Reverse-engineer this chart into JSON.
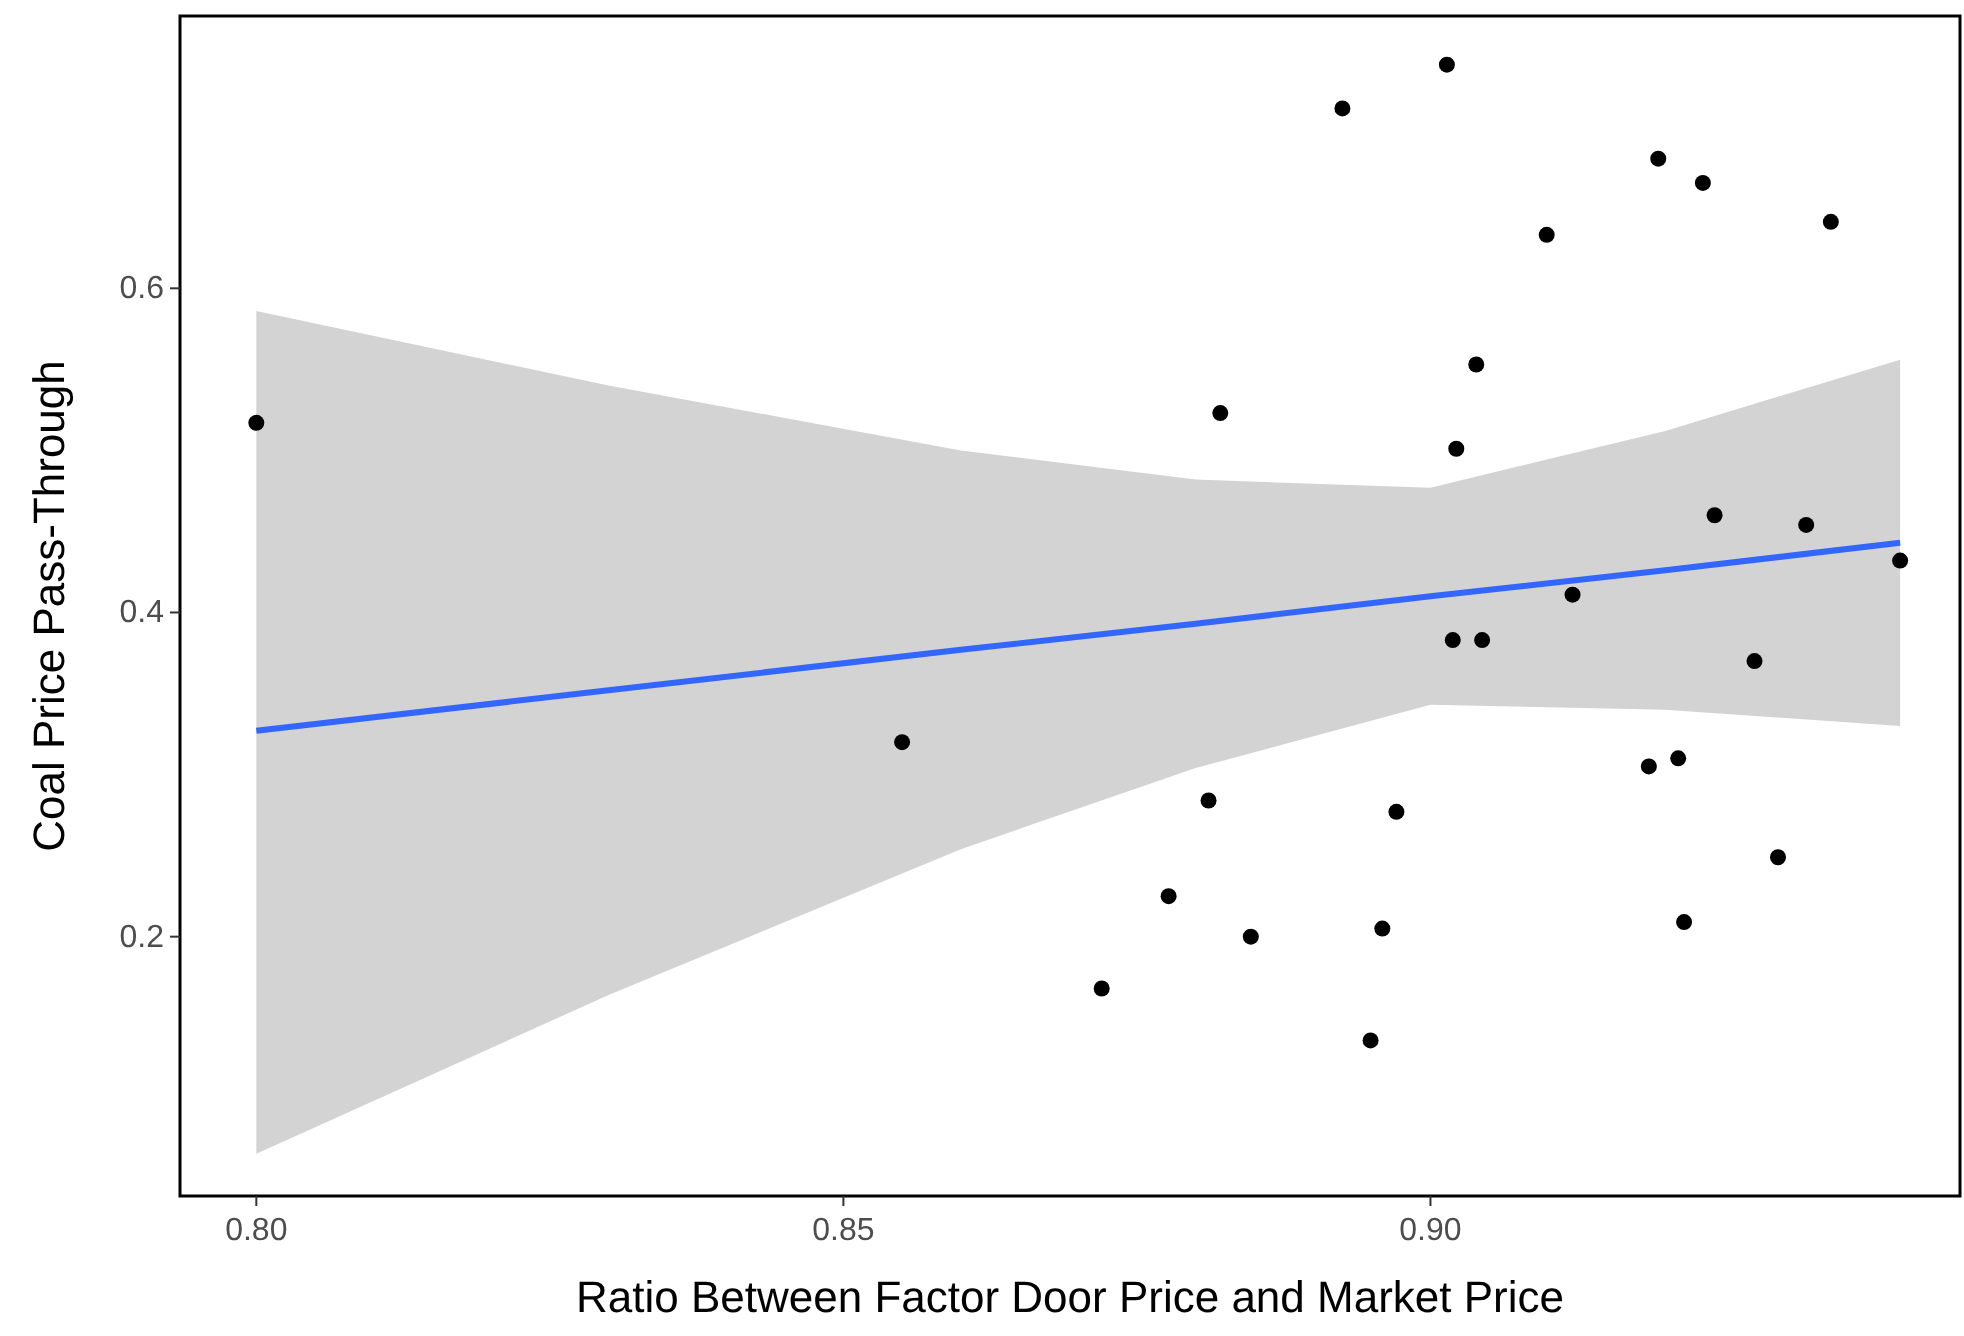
{
  "chart_data": {
    "type": "scatter",
    "xlabel": "Ratio Between Factor Door Price and Market Price",
    "ylabel": "Coal Price Pass-Through",
    "xlim": [
      0.7935,
      0.9451
    ],
    "ylim": [
      0.04,
      0.768
    ],
    "xticks": [
      {
        "value": 0.8,
        "label": "0.80"
      },
      {
        "value": 0.85,
        "label": "0.85"
      },
      {
        "value": 0.9,
        "label": "0.90"
      }
    ],
    "yticks": [
      0.2,
      0.4,
      0.6
    ],
    "grid": false,
    "series": [
      {
        "type": "line",
        "color": "#3366ff",
        "x": [
          0.8,
          0.83,
          0.86,
          0.88,
          0.9,
          0.92,
          0.94
        ],
        "values": [
          0.327,
          0.352,
          0.377,
          0.393,
          0.41,
          0.426,
          0.443
        ],
        "lower": [
          0.066,
          0.164,
          0.254,
          0.304,
          0.343,
          0.34,
          0.33
        ],
        "upper": [
          0.586,
          0.54,
          0.5,
          0.482,
          0.477,
          0.512,
          0.556
        ]
      },
      {
        "marker": "circle",
        "color": "#000000",
        "x": [
          0.8,
          0.855,
          0.872,
          0.8777,
          0.8811,
          0.8821,
          0.8847,
          0.8925,
          0.8949,
          0.8959,
          0.8971,
          0.9014,
          0.9019,
          0.9022,
          0.9039,
          0.9044,
          0.9099,
          0.9121,
          0.9186,
          0.9194,
          0.9211,
          0.9216,
          0.9232,
          0.9242,
          0.9276,
          0.9296,
          0.932,
          0.9341,
          0.94
        ],
        "values": [
          0.517,
          0.32,
          0.168,
          0.225,
          0.284,
          0.523,
          0.2,
          0.711,
          0.136,
          0.205,
          0.277,
          0.738,
          0.383,
          0.501,
          0.553,
          0.383,
          0.633,
          0.411,
          0.305,
          0.68,
          0.31,
          0.209,
          0.665,
          0.46,
          0.37,
          0.249,
          0.454,
          0.641,
          0.432
        ]
      }
    ]
  }
}
